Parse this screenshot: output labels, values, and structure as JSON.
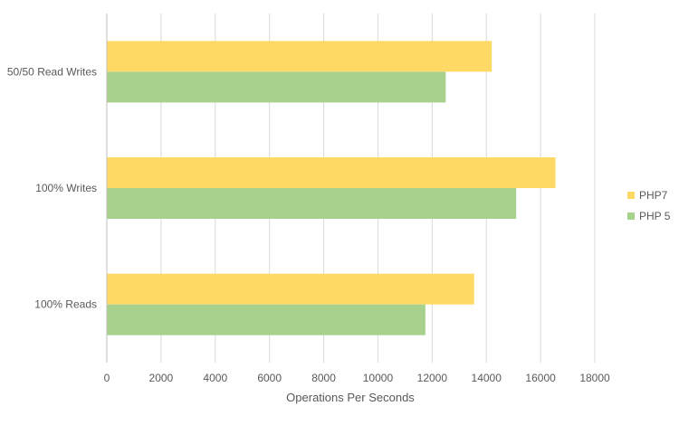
{
  "chart_data": {
    "type": "bar",
    "orientation": "horizontal",
    "categories": [
      "50/50 Read Writes",
      "100% Writes",
      "100% Reads"
    ],
    "series": [
      {
        "name": "PHP7",
        "color": "#FFD966",
        "values": [
          14200,
          16550,
          13550
        ]
      },
      {
        "name": "PHP 5",
        "color": "#A9D18E",
        "values": [
          12500,
          15100,
          11750
        ]
      }
    ],
    "xlabel": "Operations Per Seconds",
    "ylabel": "",
    "xlim": [
      0,
      18000
    ],
    "xticks": [
      0,
      2000,
      4000,
      6000,
      8000,
      10000,
      12000,
      14000,
      16000,
      18000
    ],
    "grid": true,
    "legend_position": "right"
  }
}
